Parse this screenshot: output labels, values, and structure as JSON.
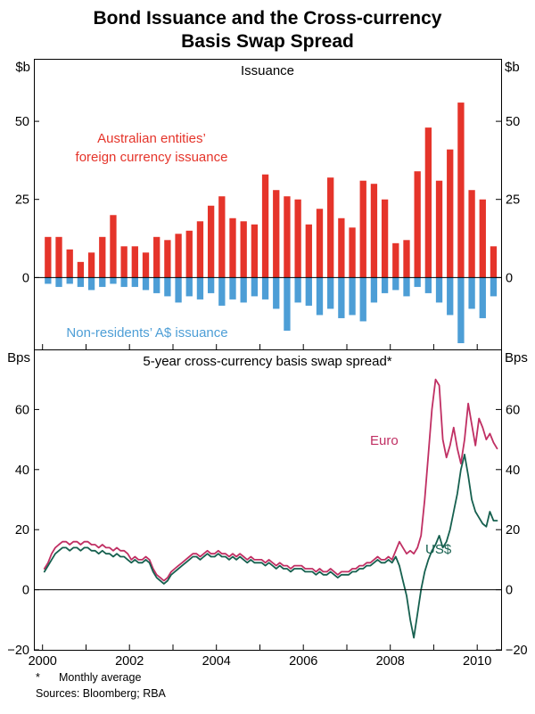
{
  "figure": {
    "title_line1": "Bond Issuance and the Cross-currency",
    "title_line2": "Basis Swap Spread",
    "footnote_marker": "*",
    "footnote_text": "Monthly average",
    "sources": "Sources: Bloomberg; RBA"
  },
  "chart_data": [
    {
      "type": "bar",
      "title": "Issuance",
      "unit_left": "$b",
      "unit_right": "$b",
      "ylim": [
        -23,
        70
      ],
      "yticks": [
        0,
        25,
        50
      ],
      "xlim": [
        1999.8,
        2010.55
      ],
      "xticks_years": [
        2000,
        2001,
        2002,
        2003,
        2004,
        2005,
        2006,
        2007,
        2008,
        2009,
        2010
      ],
      "x_start": 2000.125,
      "x_step": 0.25,
      "bar_width_years": 0.15,
      "series": [
        {
          "name": "Australian entities’ foreign currency issuance",
          "label_line1": "Australian entities’",
          "label_line2": "foreign currency issuance",
          "color": "#e5342a",
          "values": [
            13,
            13,
            9,
            5,
            8,
            13,
            20,
            10,
            10,
            8,
            13,
            12,
            14,
            15,
            18,
            23,
            26,
            19,
            18,
            17,
            33,
            28,
            26,
            25,
            17,
            22,
            32,
            19,
            16,
            31,
            30,
            25,
            11,
            12,
            34,
            48,
            31,
            41,
            56,
            28,
            25,
            10
          ]
        },
        {
          "name": "Non-residents’ A$ issuance",
          "label": "Non-residents’ A$ issuance",
          "color": "#4d9ed6",
          "values": [
            -2,
            -3,
            -2,
            -3,
            -4,
            -3,
            -2,
            -3,
            -3,
            -4,
            -5,
            -6,
            -8,
            -6,
            -7,
            -5,
            -9,
            -7,
            -8,
            -6,
            -7,
            -10,
            -17,
            -8,
            -9,
            -12,
            -10,
            -13,
            -12,
            -14,
            -8,
            -5,
            -4,
            -6,
            -3,
            -5,
            -8,
            -12,
            -21,
            -10,
            -13,
            -6
          ]
        }
      ]
    },
    {
      "type": "line",
      "title": "5-year cross-currency basis swap spread*",
      "unit_left": "Bps",
      "unit_right": "Bps",
      "ylim": [
        -20,
        80
      ],
      "yticks": [
        -20,
        0,
        20,
        40,
        60
      ],
      "xlim": [
        1999.8,
        2010.55
      ],
      "xticks_years": [
        2000,
        2001,
        2002,
        2003,
        2004,
        2005,
        2006,
        2007,
        2008,
        2009,
        2010
      ],
      "xtick_labels": [
        2000,
        2002,
        2004,
        2006,
        2008,
        2010
      ],
      "x_start": 2000.042,
      "x_step": 0.083333,
      "series": [
        {
          "name": "Euro",
          "color": "#c02f63",
          "values": [
            7,
            9,
            12,
            14,
            15,
            16,
            16,
            15,
            16,
            16,
            15,
            16,
            16,
            15,
            15,
            14,
            15,
            14,
            14,
            13,
            14,
            13,
            13,
            12,
            10,
            11,
            10,
            10,
            11,
            10,
            7,
            5,
            4,
            3,
            4,
            6,
            7,
            8,
            9,
            10,
            11,
            12,
            12,
            11,
            12,
            13,
            12,
            12,
            13,
            12,
            12,
            11,
            12,
            11,
            12,
            11,
            10,
            11,
            10,
            10,
            10,
            9,
            10,
            9,
            8,
            9,
            8,
            8,
            7,
            8,
            8,
            8,
            7,
            7,
            7,
            6,
            7,
            6,
            6,
            7,
            6,
            5,
            6,
            6,
            6,
            7,
            7,
            8,
            8,
            9,
            9,
            10,
            11,
            10,
            10,
            11,
            10,
            13,
            16,
            14,
            12,
            13,
            12,
            14,
            18,
            30,
            45,
            60,
            70,
            68,
            50,
            44,
            48,
            54,
            47,
            42,
            50,
            62,
            55,
            48,
            57,
            54,
            50,
            52,
            49,
            47
          ]
        },
        {
          "name": "US$",
          "color": "#16604f",
          "values": [
            6,
            8,
            10,
            12,
            13,
            14,
            14,
            13,
            14,
            14,
            13,
            14,
            14,
            13,
            13,
            12,
            13,
            12,
            12,
            11,
            12,
            11,
            11,
            10,
            9,
            10,
            9,
            9,
            10,
            9,
            6,
            4,
            3,
            2,
            3,
            5,
            6,
            7,
            8,
            9,
            10,
            11,
            11,
            10,
            11,
            12,
            11,
            11,
            12,
            11,
            11,
            10,
            11,
            10,
            11,
            10,
            9,
            10,
            9,
            9,
            9,
            8,
            9,
            8,
            7,
            8,
            7,
            7,
            6,
            7,
            7,
            7,
            6,
            6,
            6,
            5,
            6,
            5,
            5,
            6,
            5,
            4,
            5,
            5,
            5,
            6,
            6,
            7,
            7,
            8,
            8,
            9,
            10,
            9,
            9,
            10,
            9,
            11,
            8,
            3,
            -2,
            -10,
            -16,
            -8,
            0,
            6,
            10,
            13,
            15,
            18,
            14,
            16,
            20,
            26,
            32,
            40,
            45,
            38,
            30,
            26,
            24,
            22,
            21,
            26,
            23,
            23
          ]
        }
      ]
    }
  ]
}
